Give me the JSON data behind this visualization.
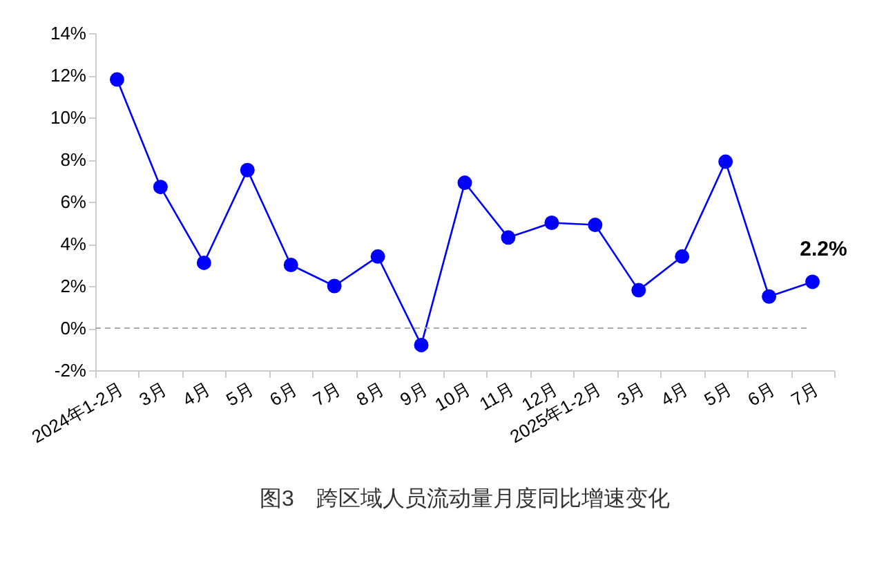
{
  "chart_data": {
    "type": "line",
    "title": "图3　跨区域人员流动量月度同比增速变化",
    "categories": [
      "2024年1-2月",
      "3月",
      "4月",
      "5月",
      "6月",
      "7月",
      "8月",
      "9月",
      "10月",
      "11月",
      "12月",
      "2025年1-2月",
      "3月",
      "4月",
      "5月",
      "6月",
      "7月"
    ],
    "series": [
      {
        "color": "#0000ff",
        "values": [
          11.8,
          6.7,
          3.1,
          7.5,
          3.0,
          2.0,
          3.4,
          -0.8,
          6.9,
          4.3,
          5.0,
          4.9,
          1.8,
          3.4,
          7.9,
          1.5,
          2.2
        ],
        "value_labels": [
          null,
          null,
          null,
          null,
          null,
          null,
          null,
          null,
          null,
          null,
          null,
          null,
          null,
          null,
          null,
          null,
          "2.2%"
        ]
      }
    ],
    "ylim": [
      -2,
      14
    ],
    "yticks": [
      {
        "value": -2,
        "label": "-2%"
      },
      {
        "value": 0,
        "label": "0%"
      },
      {
        "value": 2,
        "label": "2%"
      },
      {
        "value": 4,
        "label": "4%"
      },
      {
        "value": 6,
        "label": "6%"
      },
      {
        "value": 8,
        "label": "8%"
      },
      {
        "value": 10,
        "label": "10%"
      },
      {
        "value": 12,
        "label": "12%"
      },
      {
        "value": 14,
        "label": "14%"
      }
    ],
    "ref_lines": [
      {
        "axis": "y",
        "value": 0,
        "color": "#aaaaaa",
        "line_style": "dashed"
      }
    ],
    "grid": false,
    "marker": "circle",
    "line_style": "solid"
  }
}
